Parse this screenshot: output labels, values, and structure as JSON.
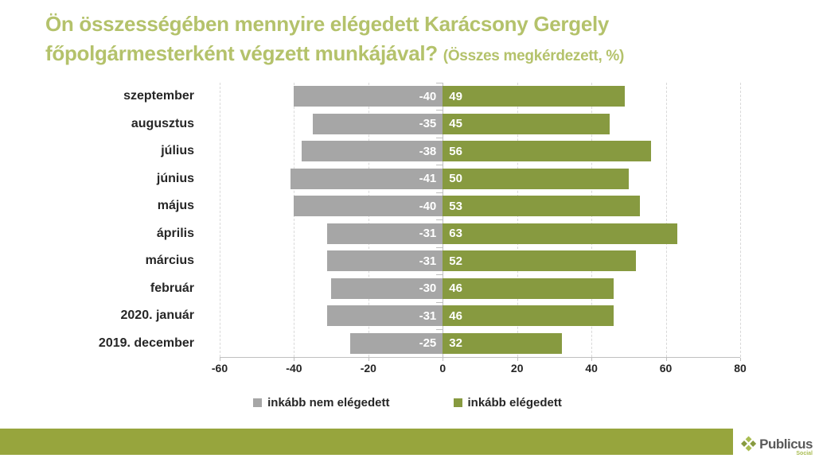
{
  "title": {
    "line1": "Ön összességében mennyire elégedett Karácsony Gergely",
    "line2": "főpolgármesterként végzett munkájával?",
    "suffix": "(Összes megkérdezett, %)"
  },
  "chart_data": {
    "type": "bar",
    "orientation": "horizontal",
    "title": "Ön összességében mennyire elégedett Karácsony Gergely főpolgármesterként végzett munkájával? (Összes megkérdezett, %)",
    "categories": [
      "szeptember",
      "augusztus",
      "július",
      "június",
      "május",
      "április",
      "március",
      "február",
      "2020. január",
      "2019. december"
    ],
    "series": [
      {
        "name": "inkább nem elégedett",
        "color": "#a6a6a6",
        "values": [
          -40,
          -35,
          -38,
          -41,
          -40,
          -31,
          -31,
          -30,
          -31,
          -25
        ]
      },
      {
        "name": "inkább elégedett",
        "color": "#879a40",
        "values": [
          49,
          45,
          56,
          50,
          53,
          63,
          52,
          46,
          46,
          32
        ]
      }
    ],
    "xlim": [
      -60,
      80
    ],
    "xticks": [
      -60,
      -40,
      -20,
      0,
      20,
      40,
      60,
      80
    ],
    "grid": "vertical-dashed",
    "legend_position": "bottom",
    "value_labels": "inside-white-bold"
  },
  "footer": {
    "brand": "Publicus",
    "brand_sub": "Social"
  },
  "colors": {
    "title": "#b4c26b",
    "text": "#262626",
    "grid": "#d9d9d9",
    "axis": "#bfbfbf",
    "value_label": "#ffffff",
    "footer_strip": "#97a53d",
    "logo_text": "#595959",
    "logo_light": "#a9bd52",
    "logo_dark": "#879a40"
  }
}
